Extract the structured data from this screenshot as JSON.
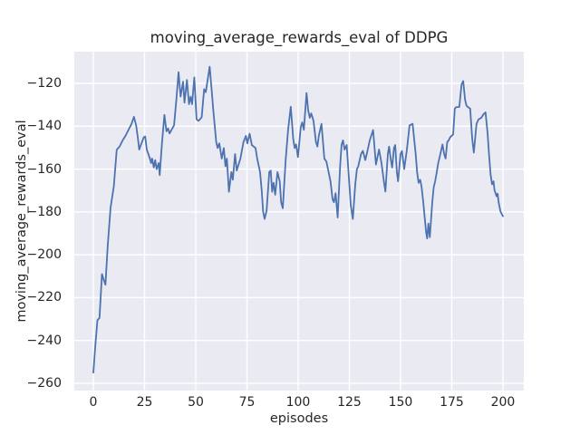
{
  "chart_data": {
    "type": "line",
    "title": "moving_average_rewards_eval of DDPG",
    "xlabel": "episodes",
    "ylabel": "moving_average_rewards_eval",
    "xlim": [
      -9.3,
      210.2
    ],
    "ylim": [
      -263.4,
      -105.2
    ],
    "grid": true,
    "legend": null,
    "background_color": "#eaeaf2",
    "grid_color": "#ffffff",
    "line_color": "#4c72b0",
    "text_color": "#262626",
    "x_ticks": [
      0,
      25,
      50,
      75,
      100,
      125,
      150,
      175,
      200
    ],
    "x_tick_labels": [
      "0",
      "25",
      "50",
      "75",
      "100",
      "125",
      "150",
      "175",
      "200"
    ],
    "y_ticks": [
      -120,
      -140,
      -160,
      -180,
      -200,
      -220,
      -240,
      -260
    ],
    "y_tick_labels": [
      "−120",
      "−140",
      "−160",
      "−180",
      "−200",
      "−220",
      "−240",
      "−260"
    ],
    "series": [
      {
        "name": "moving_average_rewards_eval",
        "points": [
          [
            0,
            -255
          ],
          [
            1,
            -242
          ],
          [
            2,
            -230.5
          ],
          [
            3,
            -229.5
          ],
          [
            4.2,
            -209
          ],
          [
            5,
            -211.5
          ],
          [
            5.9,
            -214
          ],
          [
            7,
            -196
          ],
          [
            8.4,
            -178
          ],
          [
            10,
            -168
          ],
          [
            11.4,
            -151
          ],
          [
            12.8,
            -149.5
          ],
          [
            14.3,
            -146.6
          ],
          [
            15.7,
            -144.5
          ],
          [
            17,
            -142
          ],
          [
            18.6,
            -139
          ],
          [
            19.8,
            -135.6
          ],
          [
            20.9,
            -139.6
          ],
          [
            21.7,
            -145.2
          ],
          [
            22.4,
            -150.9
          ],
          [
            23.5,
            -148
          ],
          [
            24.6,
            -145.2
          ],
          [
            25.3,
            -144.8
          ],
          [
            26.1,
            -150.9
          ],
          [
            27.6,
            -155.1
          ],
          [
            28.2,
            -157.2
          ],
          [
            28.7,
            -155.1
          ],
          [
            29.5,
            -159.3
          ],
          [
            30.2,
            -155.8
          ],
          [
            30.9,
            -160
          ],
          [
            31.9,
            -157.2
          ],
          [
            32.4,
            -162.8
          ],
          [
            33.5,
            -148
          ],
          [
            34.7,
            -134.7
          ],
          [
            35.7,
            -142.4
          ],
          [
            36.5,
            -141
          ],
          [
            37.2,
            -143.4
          ],
          [
            38.3,
            -141.5
          ],
          [
            39.4,
            -139.6
          ],
          [
            40.5,
            -128
          ],
          [
            41.6,
            -114.8
          ],
          [
            42.6,
            -126.2
          ],
          [
            43.8,
            -119.2
          ],
          [
            44.5,
            -129
          ],
          [
            45.7,
            -118.4
          ],
          [
            46.7,
            -129.7
          ],
          [
            47.5,
            -126.2
          ],
          [
            48.2,
            -129.7
          ],
          [
            49.3,
            -117.2
          ],
          [
            50.4,
            -136.8
          ],
          [
            51.4,
            -137.5
          ],
          [
            52.9,
            -135.8
          ],
          [
            54.1,
            -122.7
          ],
          [
            54.9,
            -124.1
          ],
          [
            56.8,
            -112.2
          ],
          [
            57.8,
            -123.4
          ],
          [
            58.5,
            -131.8
          ],
          [
            60,
            -147.4
          ],
          [
            60.7,
            -150.2
          ],
          [
            61.5,
            -148
          ],
          [
            62.7,
            -155.1
          ],
          [
            63.7,
            -150.2
          ],
          [
            64.5,
            -158.7
          ],
          [
            65.2,
            -155.1
          ],
          [
            66.2,
            -170.6
          ],
          [
            67.4,
            -161.4
          ],
          [
            68.1,
            -165
          ],
          [
            69.2,
            -153
          ],
          [
            70,
            -160.7
          ],
          [
            71.8,
            -155.1
          ],
          [
            73.3,
            -147.4
          ],
          [
            74.5,
            -144.5
          ],
          [
            75.2,
            -148
          ],
          [
            76.3,
            -143.5
          ],
          [
            77.4,
            -148.8
          ],
          [
            79.2,
            -150.2
          ],
          [
            80,
            -155.1
          ],
          [
            81.4,
            -161.4
          ],
          [
            82.2,
            -169.9
          ],
          [
            82.9,
            -179.8
          ],
          [
            83.6,
            -183.3
          ],
          [
            84.6,
            -179.5
          ],
          [
            85.9,
            -161.4
          ],
          [
            86.6,
            -160.7
          ],
          [
            87.3,
            -170.6
          ],
          [
            88,
            -166.4
          ],
          [
            88.8,
            -172
          ],
          [
            89.9,
            -161.4
          ],
          [
            91,
            -165.7
          ],
          [
            91.7,
            -175.5
          ],
          [
            92.5,
            -178.3
          ],
          [
            93.9,
            -155.8
          ],
          [
            95.1,
            -141.7
          ],
          [
            96.4,
            -130.9
          ],
          [
            97.6,
            -145.9
          ],
          [
            98.3,
            -150.2
          ],
          [
            99,
            -148.5
          ],
          [
            99.9,
            -154.4
          ],
          [
            101.3,
            -140.3
          ],
          [
            102,
            -138.2
          ],
          [
            102.8,
            -141.7
          ],
          [
            104.1,
            -124.5
          ],
          [
            104.9,
            -132.6
          ],
          [
            105.7,
            -136.1
          ],
          [
            106.4,
            -134
          ],
          [
            107.5,
            -137.5
          ],
          [
            108.7,
            -147.4
          ],
          [
            109.4,
            -149.5
          ],
          [
            110.1,
            -144.5
          ],
          [
            111.4,
            -138.9
          ],
          [
            112.8,
            -155.1
          ],
          [
            113.8,
            -156.5
          ],
          [
            115.8,
            -165.7
          ],
          [
            116.8,
            -174.1
          ],
          [
            117.5,
            -175.5
          ],
          [
            118.3,
            -171.3
          ],
          [
            119.3,
            -182.6
          ],
          [
            120.5,
            -158.6
          ],
          [
            121.2,
            -148.8
          ],
          [
            121.9,
            -146.6
          ],
          [
            122.7,
            -150.9
          ],
          [
            123.7,
            -148.8
          ],
          [
            124.9,
            -165.7
          ],
          [
            125.7,
            -176.9
          ],
          [
            126.7,
            -183.3
          ],
          [
            127.9,
            -167.1
          ],
          [
            128.7,
            -160
          ],
          [
            129.4,
            -158.6
          ],
          [
            130.7,
            -153
          ],
          [
            131.6,
            -151.5
          ],
          [
            132.8,
            -155.8
          ],
          [
            133.5,
            -153
          ],
          [
            135,
            -146.5
          ],
          [
            136.6,
            -141.8
          ],
          [
            138,
            -157.9
          ],
          [
            139.5,
            -150.9
          ],
          [
            140.7,
            -157.2
          ],
          [
            141.9,
            -166
          ],
          [
            142.6,
            -170.5
          ],
          [
            143.8,
            -153
          ],
          [
            144.4,
            -149.5
          ],
          [
            145.3,
            -155.8
          ],
          [
            145.9,
            -159.3
          ],
          [
            146.8,
            -150.2
          ],
          [
            147.4,
            -148.8
          ],
          [
            148.2,
            -161.4
          ],
          [
            148.8,
            -165.7
          ],
          [
            150,
            -153
          ],
          [
            150.7,
            -151.6
          ],
          [
            151.8,
            -160
          ],
          [
            153.1,
            -151
          ],
          [
            154.4,
            -139.6
          ],
          [
            155.9,
            -138.9
          ],
          [
            157.4,
            -153
          ],
          [
            158.1,
            -161.4
          ],
          [
            158.8,
            -166.4
          ],
          [
            159.6,
            -165
          ],
          [
            160.3,
            -168.5
          ],
          [
            161.1,
            -175.5
          ],
          [
            161.8,
            -182.6
          ],
          [
            162.5,
            -189.6
          ],
          [
            163,
            -192.4
          ],
          [
            163.6,
            -185.4
          ],
          [
            164.3,
            -191.8
          ],
          [
            165.5,
            -175.5
          ],
          [
            166.2,
            -168.5
          ],
          [
            166.9,
            -165.7
          ],
          [
            167.7,
            -161.4
          ],
          [
            168.4,
            -157.2
          ],
          [
            169.1,
            -154.4
          ],
          [
            170.5,
            -148.5
          ],
          [
            171.3,
            -153
          ],
          [
            172,
            -155.1
          ],
          [
            172.8,
            -147.4
          ],
          [
            173.5,
            -146.6
          ],
          [
            174.2,
            -145.2
          ],
          [
            175.7,
            -143.8
          ],
          [
            176.5,
            -131.8
          ],
          [
            177.2,
            -131.1
          ],
          [
            178.7,
            -131
          ],
          [
            179.8,
            -120.5
          ],
          [
            180.6,
            -118.9
          ],
          [
            181.5,
            -127.6
          ],
          [
            182.2,
            -130.4
          ],
          [
            183,
            -131.1
          ],
          [
            184,
            -131.8
          ],
          [
            185,
            -145.9
          ],
          [
            185.8,
            -152.3
          ],
          [
            187.1,
            -138.9
          ],
          [
            188.1,
            -136.8
          ],
          [
            189.5,
            -136
          ],
          [
            190.3,
            -134.7
          ],
          [
            191.5,
            -133.5
          ],
          [
            192.5,
            -143.1
          ],
          [
            193.2,
            -153
          ],
          [
            194,
            -162.8
          ],
          [
            194.7,
            -167.1
          ],
          [
            195.4,
            -165.7
          ],
          [
            195.9,
            -169.9
          ],
          [
            196.9,
            -172.7
          ],
          [
            197.4,
            -171.5
          ],
          [
            197.9,
            -175.5
          ],
          [
            198.8,
            -179.8
          ],
          [
            200,
            -182
          ]
        ]
      }
    ]
  }
}
